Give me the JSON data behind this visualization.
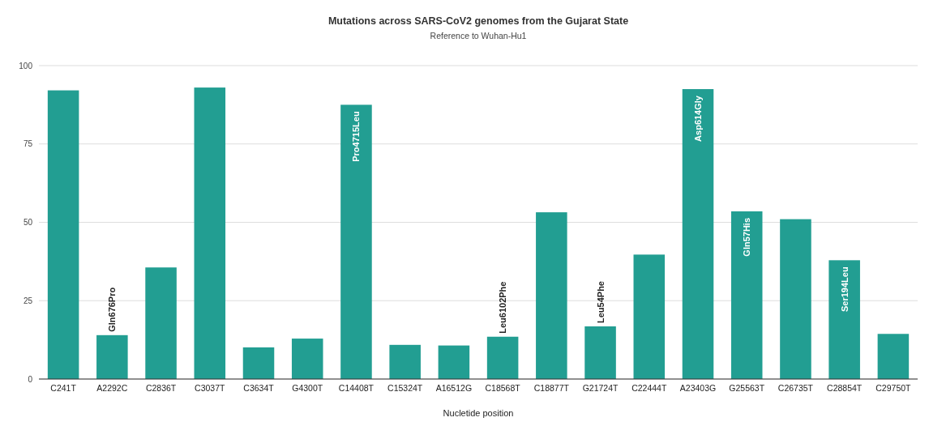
{
  "chart_data": {
    "type": "bar",
    "title": "Mutations across SARS-CoV2 genomes from the Gujarat State",
    "subtitle": "Reference to Wuhan-Hu1",
    "xlabel": "Nucletide position",
    "categories": [
      "C241T",
      "A2292C",
      "C2836T",
      "C3037T",
      "C3634T",
      "G4300T",
      "C14408T",
      "C15324T",
      "A16512G",
      "C18568T",
      "C18877T",
      "G21724T",
      "C22444T",
      "A23403G",
      "G25563T",
      "C26735T",
      "C28854T",
      "C29750T"
    ],
    "values": [
      92.1,
      14.0,
      35.6,
      93.0,
      10.1,
      12.9,
      87.5,
      10.9,
      10.7,
      13.5,
      53.2,
      16.8,
      39.7,
      92.5,
      53.5,
      51.0,
      37.9,
      14.4
    ],
    "color": "#229e92",
    "ylim": [
      0,
      100
    ],
    "yticks": [
      0,
      25,
      50,
      75,
      100
    ],
    "grid": "y",
    "annotations": [
      {
        "text": "Gln676Pro",
        "x": "A2292C",
        "y": 14.0
      },
      {
        "text": "Pro4715Leu",
        "x": "C14408T",
        "y": 87.5
      },
      {
        "text": "Leu6102Phe",
        "x": "C18568T",
        "y": 13.5
      },
      {
        "text": "Leu54Phe",
        "x": "G21724T",
        "y": 16.8
      },
      {
        "text": "Asp614Gly",
        "x": "A23403G",
        "y": 92.5
      },
      {
        "text": "Gln57His",
        "x": "G25563T",
        "y": 53.5
      },
      {
        "text": "Ser194Leu",
        "x": "C28854T",
        "y": 37.9
      }
    ]
  }
}
